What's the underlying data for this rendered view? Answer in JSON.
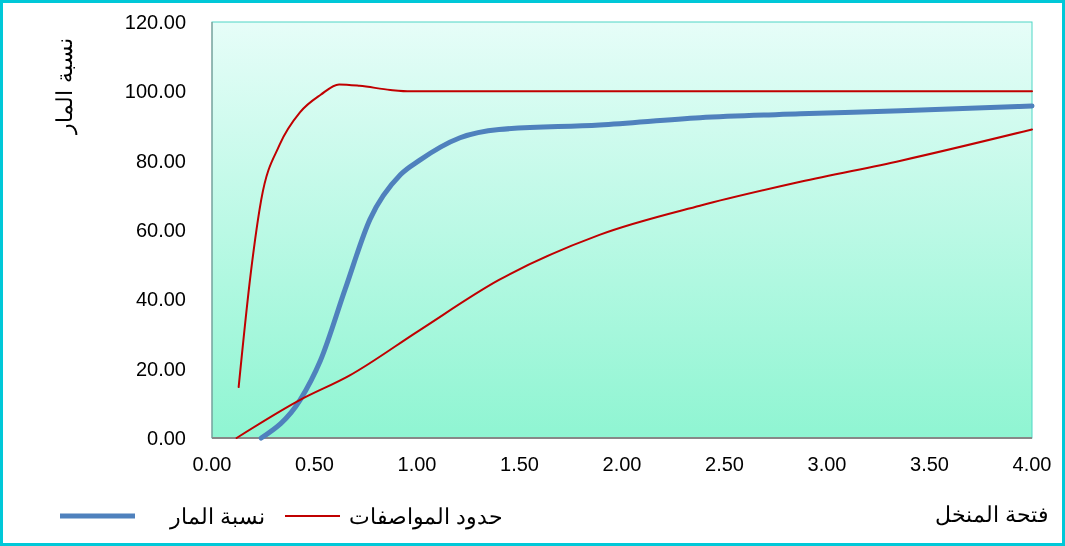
{
  "chart_data": {
    "type": "line",
    "xlabel": "فتحة المنخل",
    "ylabel": "نسبة المار",
    "xlim": [
      0,
      4
    ],
    "ylim": [
      0,
      120
    ],
    "xticks": [
      {
        "value": 0,
        "label": "0.00"
      },
      {
        "value": 0.5,
        "label": "0.50"
      },
      {
        "value": 1,
        "label": "1.00"
      },
      {
        "value": 1.5,
        "label": "1.50"
      },
      {
        "value": 2,
        "label": "2.00"
      },
      {
        "value": 2.5,
        "label": "2.50"
      },
      {
        "value": 3,
        "label": "3.00"
      },
      {
        "value": 3.5,
        "label": "3.50"
      },
      {
        "value": 4,
        "label": "4.00"
      }
    ],
    "yticks": [
      {
        "value": 0,
        "label": "0.00"
      },
      {
        "value": 20,
        "label": "20.00"
      },
      {
        "value": 40,
        "label": "40.00"
      },
      {
        "value": 60,
        "label": "60.00"
      },
      {
        "value": 80,
        "label": "80.00"
      },
      {
        "value": 100,
        "label": "100.00"
      },
      {
        "value": 120,
        "label": "120.00"
      }
    ],
    "grid": false,
    "legend": "bottom",
    "marker": "none",
    "line_style": "solid",
    "series": [
      {
        "name": "نسبة المار",
        "color": "#4f81bd",
        "x": [
          0.24,
          0.43,
          0.53,
          0.65,
          0.77,
          0.92,
          1.01,
          1.21,
          1.4,
          1.89,
          2.38,
          2.87,
          3.36,
          4.0
        ],
        "values": [
          0,
          11,
          22.5,
          43,
          63,
          76,
          80,
          86.6,
          89,
          90.3,
          92.4,
          93.5,
          94.4,
          95.8
        ]
      },
      {
        "name": "حدود المواصفات",
        "color": "#c00000",
        "x": [
          0.13,
          0.19,
          0.24,
          0.33,
          0.43,
          0.53,
          0.62,
          0.72,
          0.87,
          0.97,
          4.0
        ],
        "values": [
          14.7,
          48,
          68.7,
          84.6,
          94,
          99,
          102,
          101.6,
          100.4,
          100,
          100
        ]
      },
      {
        "color": "#c00000",
        "x": [
          0.12,
          0.43,
          0.67,
          1.01,
          1.4,
          1.89,
          2.38,
          2.87,
          3.36,
          4.0
        ],
        "values": [
          0,
          11,
          18,
          31,
          45.6,
          58.6,
          67,
          73.9,
          80,
          89
        ]
      }
    ]
  }
}
